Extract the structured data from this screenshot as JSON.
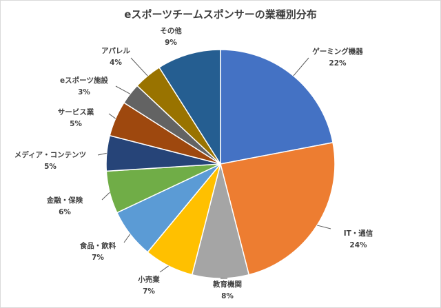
{
  "chart_data": {
    "type": "pie",
    "title": "eスポーツチームスポンサーの業種別分布",
    "labels": [
      "ゲーミング機器",
      "IT・通信",
      "教育機関",
      "小売業",
      "食品・飲料",
      "金融・保険",
      "メディア・コンテンツ",
      "サービス業",
      "eスポーツ施設",
      "アパレル",
      "その他"
    ],
    "values": [
      22,
      24,
      8,
      7,
      7,
      6,
      5,
      5,
      3,
      4,
      9
    ],
    "value_labels": [
      "22%",
      "24%",
      "8%",
      "7%",
      "7%",
      "6%",
      "5%",
      "5%",
      "3%",
      "4%",
      "9%"
    ],
    "colors": [
      "#4472C4",
      "#ED7D31",
      "#A5A5A5",
      "#FFC000",
      "#5B9BD5",
      "#70AD47",
      "#264478",
      "#9E480E",
      "#636363",
      "#997300",
      "#255E91"
    ],
    "start_angle_deg": 0,
    "direction": "clockwise",
    "legend": "none",
    "data_labels": "outside-with-leader-lines"
  }
}
